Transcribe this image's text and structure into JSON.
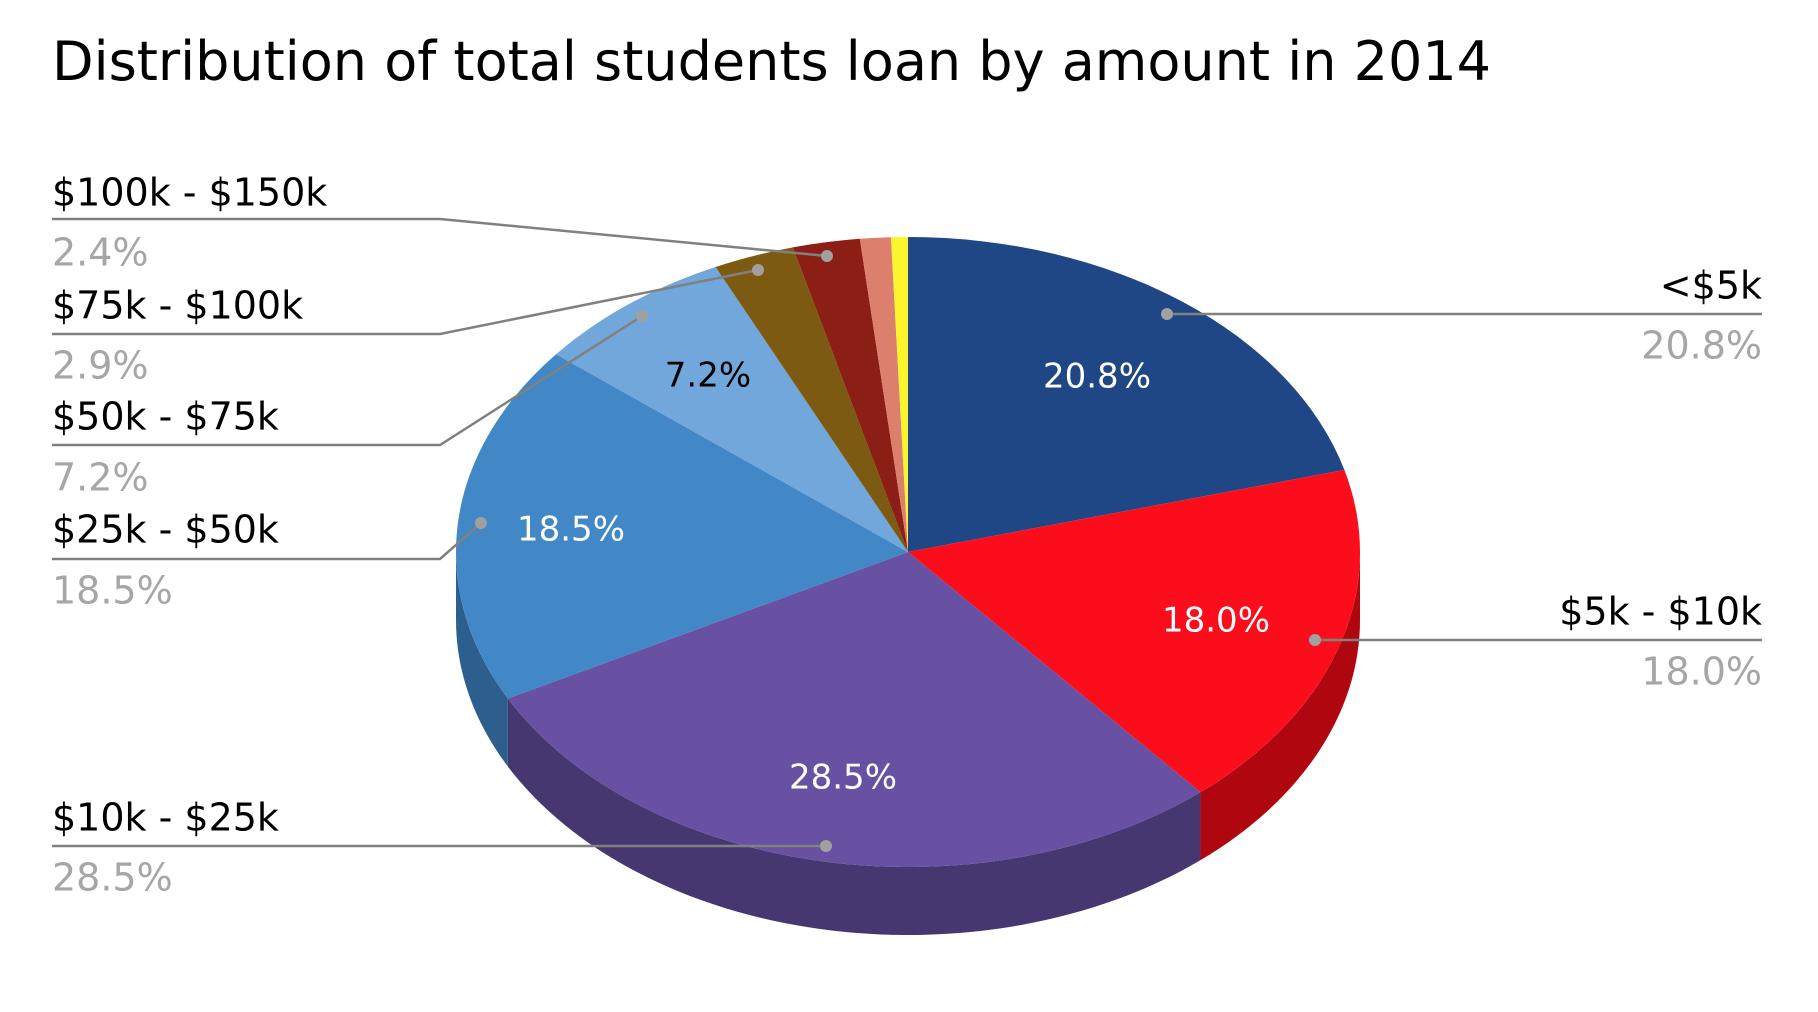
{
  "chart_data": {
    "type": "pie",
    "title": "Distribution of total students loan by amount in 2014",
    "start_category": "<$5k",
    "direction": "clockwise",
    "slices": [
      {
        "label": "<$5k",
        "value": 20.8,
        "value_label": "20.8%",
        "color": "#204785",
        "side_color": "#163463",
        "inner_label": "20.8%",
        "inner_label_color": "#ffffff"
      },
      {
        "label": "$5k - $10k",
        "value": 18.0,
        "value_label": "18.0%",
        "color": "#fc0d1b",
        "side_color": "#b00610",
        "inner_label": "18.0%",
        "inner_label_color": "#ffffff"
      },
      {
        "label": "$10k - $25k",
        "value": 28.5,
        "value_label": "28.5%",
        "color": "#6851a2",
        "side_color": "#473770",
        "inner_label": "28.5%",
        "inner_label_color": "#ffffff"
      },
      {
        "label": "$25k - $50k",
        "value": 18.5,
        "value_label": "18.5%",
        "color": "#4287c6",
        "side_color": "#2c5f8e",
        "inner_label": "18.5%",
        "inner_label_color": "#ffffff"
      },
      {
        "label": "$50k - $75k",
        "value": 7.2,
        "value_label": "7.2%",
        "color": "#72a7dc",
        "side_color": "#5082b4",
        "inner_label": "7.2%",
        "inner_label_color": "#000000"
      },
      {
        "label": "$75k - $100k",
        "value": 2.9,
        "value_label": "2.9%",
        "color": "#7c5a11",
        "side_color": "#5a400b",
        "inner_label": "",
        "inner_label_color": "#ffffff"
      },
      {
        "label": "$100k - $150k",
        "value": 2.4,
        "value_label": "2.4%",
        "color": "#8b1f16",
        "side_color": "#63150f",
        "inner_label": "",
        "inner_label_color": "#ffffff"
      },
      {
        "label": "",
        "value": 1.1,
        "value_label": "",
        "color": "#dc7f6d",
        "side_color": "#a65d4f",
        "inner_label": "",
        "inner_label_color": "#ffffff"
      },
      {
        "label": "",
        "value": 0.6,
        "value_label": "",
        "color": "#fcf52d",
        "side_color": "#c4be1c",
        "inner_label": "",
        "inner_label_color": "#000000"
      }
    ],
    "leader_line_color": "#808080",
    "legend": "none"
  }
}
